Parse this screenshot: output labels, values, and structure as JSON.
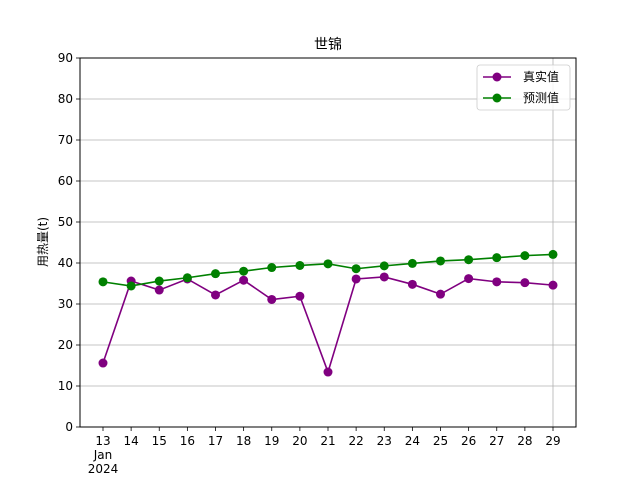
{
  "chart_data": {
    "type": "line",
    "title": "世锦",
    "xlabel": "",
    "ylabel": "用热量(t)",
    "x": [
      "2024-01-13",
      "2024-01-14",
      "2024-01-15",
      "2024-01-16",
      "2024-01-17",
      "2024-01-18",
      "2024-01-19",
      "2024-01-20",
      "2024-01-21",
      "2024-01-22",
      "2024-01-23",
      "2024-01-24",
      "2024-01-25",
      "2024-01-26",
      "2024-01-27",
      "2024-01-28",
      "2024-01-29"
    ],
    "x_tick_labels": [
      "13",
      "14",
      "15",
      "16",
      "17",
      "18",
      "19",
      "20",
      "21",
      "22",
      "23",
      "24",
      "25",
      "26",
      "27",
      "28",
      "29"
    ],
    "x_sub_labels": [
      "Jan",
      "2024"
    ],
    "ylim": [
      0,
      90
    ],
    "yticks": [
      0,
      10,
      20,
      30,
      40,
      50,
      60,
      70,
      80,
      90
    ],
    "grid": "y",
    "legend": "top-right",
    "series": [
      {
        "name": "真实值",
        "color": "#800080",
        "values": [
          15.6,
          35.6,
          33.4,
          36.1,
          32.2,
          35.8,
          31.1,
          31.9,
          13.4,
          36.1,
          36.6,
          34.8,
          32.4,
          36.2,
          35.4,
          35.2,
          34.6
        ]
      },
      {
        "name": "预测值",
        "color": "#008000",
        "values": [
          35.4,
          34.4,
          35.6,
          36.4,
          37.4,
          38.0,
          38.9,
          39.4,
          39.8,
          38.6,
          39.3,
          39.9,
          40.5,
          40.8,
          41.3,
          41.8,
          42.1
        ]
      }
    ]
  }
}
